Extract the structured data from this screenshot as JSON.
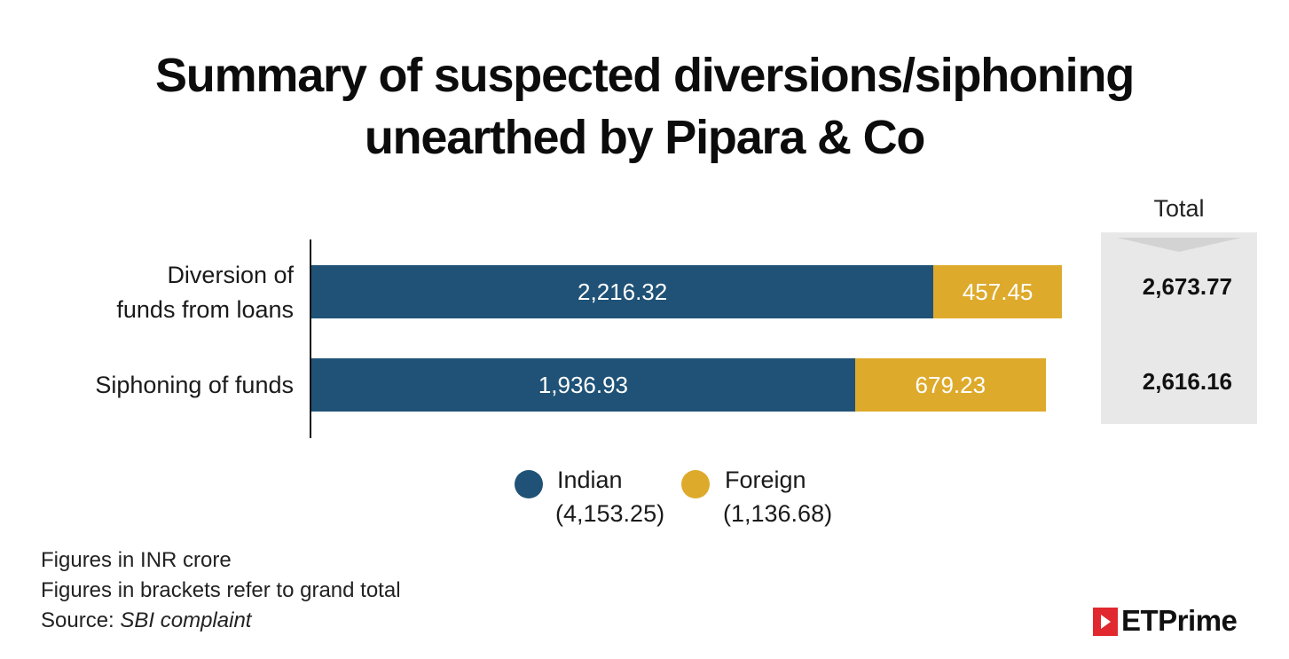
{
  "title_line1": "Summary of suspected diversions/siphoning",
  "title_line2": "unearthed by Pipara & Co",
  "total_header": "Total",
  "colors": {
    "indian": "#1f5276",
    "foreign": "#deaa2b",
    "total_box": "#e8e8e8"
  },
  "chart_data": {
    "type": "bar",
    "orientation": "horizontal",
    "stacked": true,
    "categories_lines": [
      [
        "Diversion of",
        "funds from loans"
      ],
      [
        "Siphoning of funds"
      ]
    ],
    "categories": [
      "Diversion of funds from loans",
      "Siphoning of funds"
    ],
    "series": [
      {
        "name": "Indian",
        "values": [
          2216.32,
          1936.93
        ],
        "labels": [
          "2,216.32",
          "1,936.93"
        ],
        "grand_total": "(4,153.25)"
      },
      {
        "name": "Foreign",
        "values": [
          457.45,
          679.23
        ],
        "labels": [
          "457.45",
          "679.23"
        ],
        "grand_total": "(1,136.68)"
      }
    ],
    "totals": [
      "2,673.77",
      "2,616.16"
    ],
    "legend_position": "bottom",
    "grid": false
  },
  "notes": {
    "line1": "Figures in INR crore",
    "line2": "Figures in brackets refer to grand total",
    "source_prefix": "Source: ",
    "source_name": "SBI complaint"
  },
  "brand": {
    "name": "ETPrime"
  }
}
